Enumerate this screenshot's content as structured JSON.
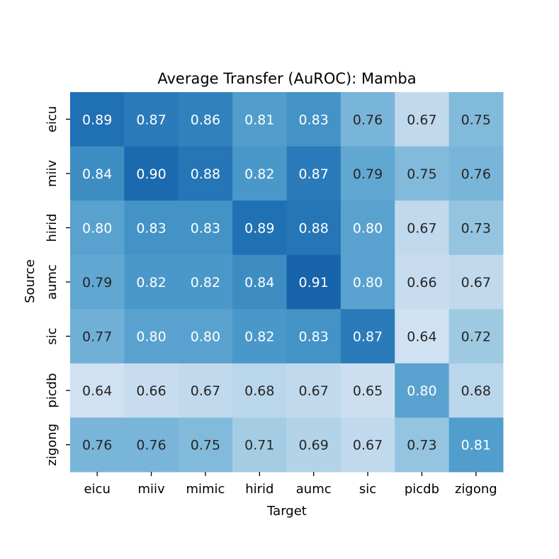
{
  "chart_data": {
    "type": "heatmap",
    "title": "Average Transfer (AuROC): Mamba",
    "xlabel": "Target",
    "ylabel": "Source",
    "x_categories": [
      "eicu",
      "miiv",
      "mimic",
      "hirid",
      "aumc",
      "sic",
      "picdb",
      "zigong"
    ],
    "y_categories": [
      "eicu",
      "miiv",
      "hirid",
      "aumc",
      "sic",
      "picdb",
      "zigong"
    ],
    "values": [
      [
        0.89,
        0.87,
        0.86,
        0.81,
        0.83,
        0.76,
        0.67,
        0.75
      ],
      [
        0.84,
        0.9,
        0.88,
        0.82,
        0.87,
        0.79,
        0.75,
        0.76
      ],
      [
        0.8,
        0.83,
        0.83,
        0.89,
        0.88,
        0.8,
        0.67,
        0.73
      ],
      [
        0.79,
        0.82,
        0.82,
        0.84,
        0.91,
        0.8,
        0.66,
        0.67
      ],
      [
        0.77,
        0.8,
        0.8,
        0.82,
        0.83,
        0.87,
        0.64,
        0.72
      ],
      [
        0.64,
        0.66,
        0.67,
        0.68,
        0.67,
        0.65,
        0.8,
        0.68
      ],
      [
        0.76,
        0.76,
        0.75,
        0.71,
        0.69,
        0.67,
        0.73,
        0.81
      ]
    ],
    "colormap": "Blues",
    "color_range": [
      0.55,
      1.0
    ],
    "annotations": true,
    "annotation_format": "0.00",
    "colorbar": false
  }
}
